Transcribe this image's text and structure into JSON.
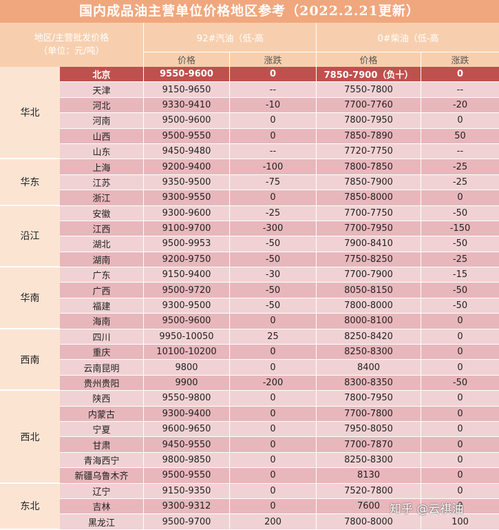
{
  "title": "国内成品油主营单位价格地区参考（2022.2.21更新）",
  "header": {
    "left_line1": "地区/主营批发价格",
    "left_line2": "（单位：元/吨）",
    "gasoline_group": "92#汽油（低-高",
    "diesel_group": "0#柴油（低-高",
    "price": "价格",
    "change": "涨跌"
  },
  "regions": [
    {
      "name": "华北",
      "rows": [
        {
          "city": "北京",
          "gas_price": "9550-9600",
          "gas_change": "0",
          "diesel_price": "7850-7900（负十）",
          "diesel_change": "0",
          "highlight": true
        },
        {
          "city": "天津",
          "gas_price": "9150-9650",
          "gas_change": "--",
          "diesel_price": "7550-7800",
          "diesel_change": "--"
        },
        {
          "city": "河北",
          "gas_price": "9330-9410",
          "gas_change": "-10",
          "diesel_price": "7700-7760",
          "diesel_change": "-20"
        },
        {
          "city": "河南",
          "gas_price": "9500-9600",
          "gas_change": "0",
          "diesel_price": "7800-7950",
          "diesel_change": "0"
        },
        {
          "city": "山西",
          "gas_price": "9500-9550",
          "gas_change": "0",
          "diesel_price": "7850-7890",
          "diesel_change": "50"
        },
        {
          "city": "山东",
          "gas_price": "9450-9480",
          "gas_change": "--",
          "diesel_price": "7720-7750",
          "diesel_change": "--"
        }
      ]
    },
    {
      "name": "华东",
      "rows": [
        {
          "city": "上海",
          "gas_price": "9200-9400",
          "gas_change": "-100",
          "diesel_price": "7800-7850",
          "diesel_change": "-25"
        },
        {
          "city": "江苏",
          "gas_price": "9350-9500",
          "gas_change": "-75",
          "diesel_price": "7850-7900",
          "diesel_change": "-25"
        },
        {
          "city": "浙江",
          "gas_price": "9300-9550",
          "gas_change": "0",
          "diesel_price": "7850-8000",
          "diesel_change": "0"
        }
      ]
    },
    {
      "name": "沿江",
      "rows": [
        {
          "city": "安徽",
          "gas_price": "9300-9600",
          "gas_change": "-25",
          "diesel_price": "7700-7750",
          "diesel_change": "-50"
        },
        {
          "city": "江西",
          "gas_price": "9100-9700",
          "gas_change": "-300",
          "diesel_price": "7700-7950",
          "diesel_change": "-150"
        },
        {
          "city": "湖北",
          "gas_price": "9500-9953",
          "gas_change": "-50",
          "diesel_price": "7900-8410",
          "diesel_change": "-50"
        },
        {
          "city": "湖南",
          "gas_price": "9200-9750",
          "gas_change": "-50",
          "diesel_price": "7750-8250",
          "diesel_change": "-25"
        }
      ]
    },
    {
      "name": "华南",
      "rows": [
        {
          "city": "广东",
          "gas_price": "9150-9400",
          "gas_change": "-30",
          "diesel_price": "7700-7900",
          "diesel_change": "-15"
        },
        {
          "city": "广西",
          "gas_price": "9500-9720",
          "gas_change": "-50",
          "diesel_price": "8050-8150",
          "diesel_change": "-50"
        },
        {
          "city": "福建",
          "gas_price": "9300-9500",
          "gas_change": "-50",
          "diesel_price": "7800-8000",
          "diesel_change": "-50"
        },
        {
          "city": "海南",
          "gas_price": "9500-9600",
          "gas_change": "0",
          "diesel_price": "8000-8100",
          "diesel_change": "0"
        }
      ]
    },
    {
      "name": "西南",
      "rows": [
        {
          "city": "四川",
          "gas_price": "9950-10050",
          "gas_change": "25",
          "diesel_price": "8250-8420",
          "diesel_change": "0"
        },
        {
          "city": "重庆",
          "gas_price": "10100-10200",
          "gas_change": "0",
          "diesel_price": "8250-8300",
          "diesel_change": "0"
        },
        {
          "city": "云南昆明",
          "gas_price": "9800",
          "gas_change": "0",
          "diesel_price": "8400",
          "diesel_change": "0"
        },
        {
          "city": "贵州贵阳",
          "gas_price": "9900",
          "gas_change": "-200",
          "diesel_price": "8300-8350",
          "diesel_change": "-50"
        }
      ]
    },
    {
      "name": "西北",
      "rows": [
        {
          "city": "陕西",
          "gas_price": "9550-9800",
          "gas_change": "0",
          "diesel_price": "7800-7950",
          "diesel_change": "0"
        },
        {
          "city": "内蒙古",
          "gas_price": "9300-9400",
          "gas_change": "0",
          "diesel_price": "7700-7800",
          "diesel_change": "0"
        },
        {
          "city": "宁夏",
          "gas_price": "9600-9650",
          "gas_change": "0",
          "diesel_price": "7950-8050",
          "diesel_change": "0"
        },
        {
          "city": "甘肃",
          "gas_price": "9450-9550",
          "gas_change": "0",
          "diesel_price": "7700-7870",
          "diesel_change": "0"
        },
        {
          "city": "青海西宁",
          "gas_price": "9800-9850",
          "gas_change": "0",
          "diesel_price": "8250-8300",
          "diesel_change": "0"
        },
        {
          "city": "新疆乌鲁木齐",
          "gas_price": "9500-9550",
          "gas_change": "0",
          "diesel_price": "8130",
          "diesel_change": "0"
        }
      ]
    },
    {
      "name": "东北",
      "rows": [
        {
          "city": "辽宁",
          "gas_price": "9150-9350",
          "gas_change": "0",
          "diesel_price": "7520-7800",
          "diesel_change": "0"
        },
        {
          "city": "吉林",
          "gas_price": "9300-9312",
          "gas_change": "0",
          "diesel_price": "7600",
          "diesel_change": "0"
        },
        {
          "city": "黑龙江",
          "gas_price": "9500-9700",
          "gas_change": "200",
          "diesel_price": "7800-8000",
          "diesel_change": "100"
        }
      ]
    }
  ],
  "watermark": "知乎 @云祺油",
  "colors": {
    "title_bg": "#f0a77e",
    "header_bg": "#f8cfae",
    "region_bg": "#fce4d3",
    "row_dark": "#e7b7bc",
    "row_light": "#f1d2d4",
    "row_highlight": "#c0504d"
  }
}
